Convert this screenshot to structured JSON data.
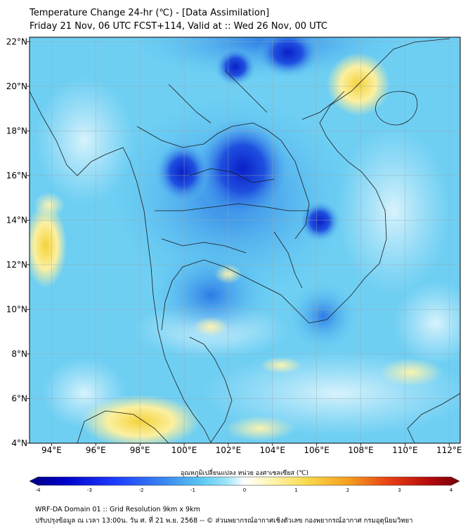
{
  "header": {
    "title_line1": "Temperature Change 24-hr (℃) - [Data Assimilation]",
    "title_line2": "Friday 21 Nov, 06 UTC FCST+114, Valid at :: Wed 26 Nov, 00 UTC"
  },
  "map": {
    "lat_labels": [
      "22°N",
      "20°N",
      "18°N",
      "16°N",
      "14°N",
      "12°N",
      "10°N",
      "8°N",
      "6°N",
      "4°N"
    ],
    "lat_values": [
      22,
      20,
      18,
      16,
      14,
      12,
      10,
      8,
      6,
      4
    ],
    "lon_labels": [
      "94°E",
      "96°E",
      "98°E",
      "100°E",
      "102°E",
      "104°E",
      "106°E",
      "108°E",
      "110°E",
      "112°E"
    ],
    "lon_values": [
      94,
      96,
      98,
      100,
      102,
      104,
      106,
      108,
      110,
      112
    ],
    "extent": {
      "lon_min": 93.0,
      "lon_max": 112.5,
      "lat_min": 4.0,
      "lat_max": 22.2
    },
    "colors": {
      "cold_core": "#0a1fc8",
      "cold": "#2d7be6",
      "cool": "#5cc8f2",
      "light": "#bfeafb",
      "warm": "#fbf0a0",
      "warm_core": "#f5d23a",
      "grid": "#9aa7b0",
      "border": "#1a1a1a"
    }
  },
  "colorbar": {
    "title": "อุณหภูมิเปลี่ยนแปลง หน่วย องศาเซลเซียส (℃)",
    "tick_labels": [
      "-4",
      "-3",
      "-2",
      "-1",
      "0",
      "1",
      "2",
      "3",
      "4"
    ],
    "range": [
      -4,
      4
    ],
    "stops": [
      "#000080",
      "#0000c8",
      "#1e3cff",
      "#3c8cf0",
      "#5cc8f2",
      "#a0e6fa",
      "#ffffff",
      "#fff5b4",
      "#fadc50",
      "#f5a01e",
      "#e63c14",
      "#b40a0a",
      "#78000a"
    ]
  },
  "footer": {
    "line1": "WRF-DA Domain 01 :: Grid Resolution 9km x 9km",
    "line2": "ปรับปรุงข้อมูล ณ เวลา 13:00น. วัน ศ. ที่ 21 พ.ย. 2568 -- © ส่วนพยากรณ์อากาศเชิงตัวเลข กองพยากรณ์อากาศ กรมอุตุนิยมวิทยา"
  }
}
